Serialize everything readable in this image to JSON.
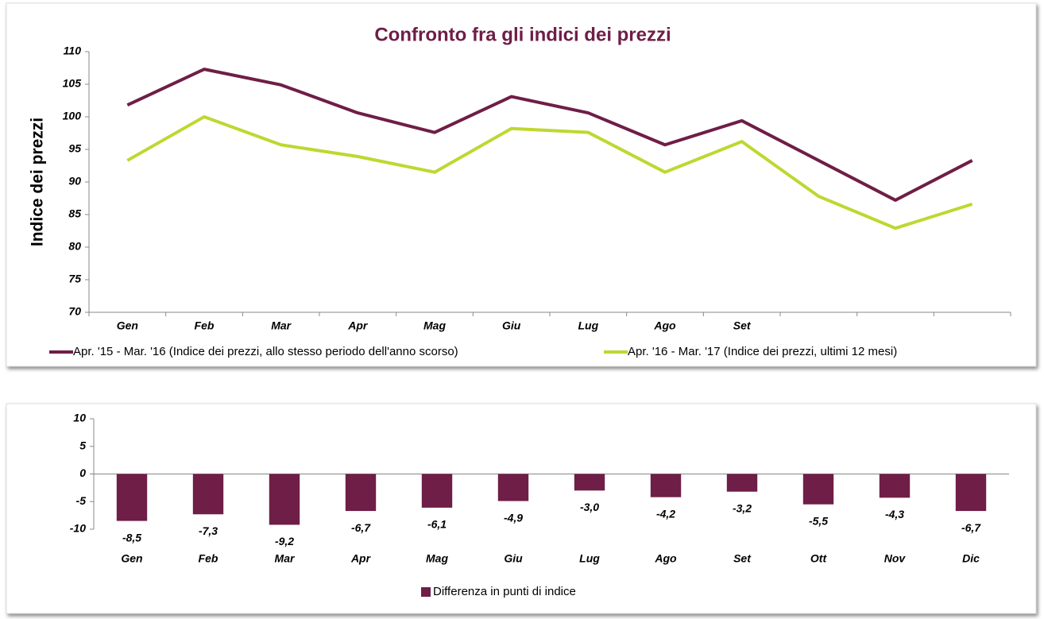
{
  "chart_data": [
    {
      "type": "line",
      "title": "Confronto fra gli indici dei prezzi",
      "y_label": "Indice dei prezzi",
      "categories": [
        "Gen",
        "Feb",
        "Mar",
        "Apr",
        "Mag",
        "Giu",
        "Lug",
        "Ago",
        "Set",
        null,
        null,
        null
      ],
      "series": [
        {
          "name": "Apr. '15 - Mar. '16 (Indice dei prezzi, allo stesso periodo dell'anno scorso)",
          "color": "#6e1e47",
          "values": [
            101.8,
            107.3,
            104.9,
            100.6,
            97.6,
            103.1,
            100.6,
            95.7,
            99.4,
            93.3,
            87.2,
            93.3
          ]
        },
        {
          "name": "Apr. '16 - Mar. '17 (Indice dei prezzi, ultimi 12 mesi)",
          "color": "#bfd730",
          "values": [
            93.3,
            100.0,
            95.7,
            93.9,
            91.5,
            98.2,
            97.6,
            91.5,
            96.2,
            87.8,
            82.9,
            86.6
          ]
        }
      ],
      "ylim": [
        70,
        110
      ],
      "yticks": [
        70,
        75,
        80,
        85,
        90,
        95,
        100,
        105,
        110
      ],
      "grid": false,
      "legend": "bottom"
    },
    {
      "type": "bar",
      "categories": [
        "Gen",
        "Feb",
        "Mar",
        "Apr",
        "Mag",
        "Giu",
        "Lug",
        "Ago",
        "Set",
        "Ott",
        "Nov",
        "Dic"
      ],
      "series": [
        {
          "name": "Differenza in punti di indice",
          "color": "#6e1e47",
          "values": [
            -8.5,
            -7.3,
            -9.2,
            -6.7,
            -6.1,
            -4.9,
            -3.0,
            -4.2,
            -3.2,
            -5.5,
            -4.3,
            -6.7
          ],
          "value_labels": [
            "-8,5",
            "-7,3",
            "-9,2",
            "-6,7",
            "-6,1",
            "-4,9",
            "-3,0",
            "-4,2",
            "-3,2",
            "-5,5",
            "-4,3",
            "-6,7"
          ]
        }
      ],
      "ylim": [
        -10,
        10
      ],
      "yticks": [
        -10,
        -5,
        0,
        5,
        10
      ],
      "grid": false,
      "legend": "bottom"
    }
  ]
}
